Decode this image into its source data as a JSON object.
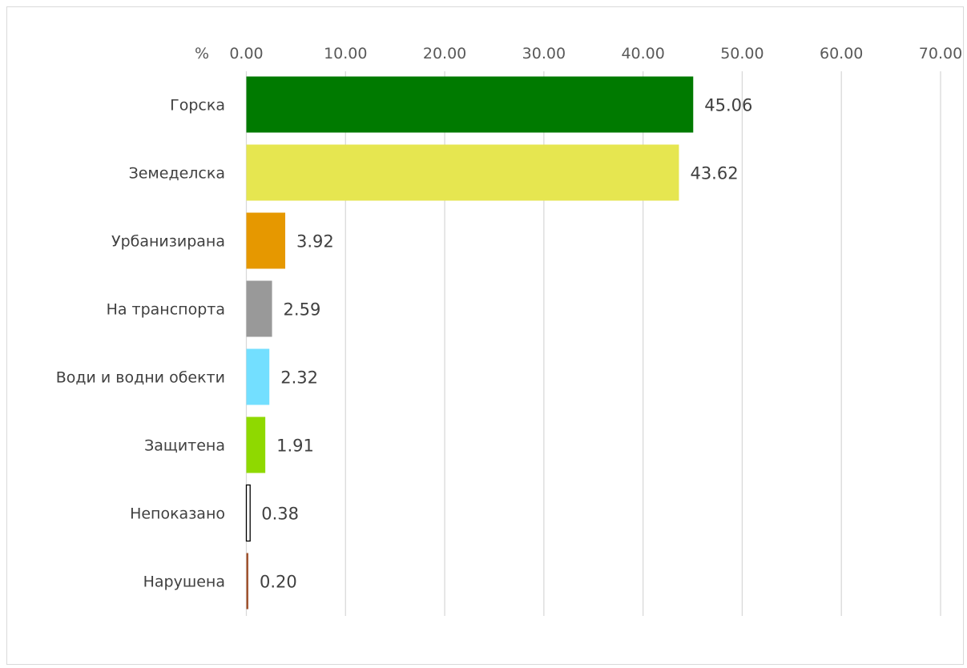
{
  "chart_data": {
    "type": "bar",
    "orientation": "horizontal",
    "unit_label": "%",
    "xlim": [
      0,
      70
    ],
    "tick_values": [
      0,
      10,
      20,
      30,
      40,
      50,
      60,
      70
    ],
    "tick_labels": [
      "0.00",
      "10.00",
      "20.00",
      "30.00",
      "40.00",
      "50.00",
      "60.00",
      "70.00"
    ],
    "axis_position": "top",
    "grid": true,
    "categories": [
      "Горска",
      "Земеделска",
      "Урбанизирана",
      "На транспорта",
      "Води и водни обекти",
      "Защитена",
      "Непоказано",
      "Нарушена"
    ],
    "values": [
      45.06,
      43.62,
      3.92,
      2.59,
      2.32,
      1.91,
      0.38,
      0.2
    ],
    "value_labels": [
      "45.06",
      "43.62",
      "3.92",
      "2.59",
      "2.32",
      "1.91",
      "0.38",
      "0.20"
    ],
    "colors": [
      "#007A00",
      "#E6E650",
      "#E69800",
      "#999999",
      "#73DFFF",
      "#8FD900",
      "#FFFFFF",
      "#A0522D"
    ],
    "outlines": [
      "",
      "",
      "",
      "",
      "",
      "",
      "#000000",
      ""
    ]
  }
}
